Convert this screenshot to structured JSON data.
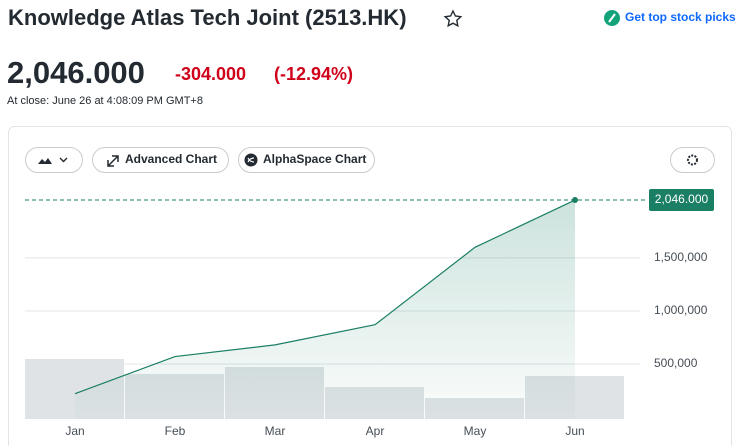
{
  "header": {
    "title": "Knowledge Atlas Tech Joint (2513.HK)",
    "cta": "Get top stock picks"
  },
  "quote": {
    "price": "2,046.000",
    "change": "-304.000",
    "change_pct": "(-12.94%)",
    "close_time": "At close: June 26 at 4:08:09 PM GMT+8"
  },
  "toolbar": {
    "advanced": "Advanced Chart",
    "alphaspace": "AlphaSpace Chart"
  },
  "chart_data": {
    "type": "line",
    "categories": [
      "Jan",
      "Feb",
      "Mar",
      "Apr",
      "May",
      "Jun"
    ],
    "series": [
      {
        "color": "#1a7f64",
        "values": [
          220000,
          570000,
          680000,
          870000,
          1600000,
          2046000
        ]
      }
    ],
    "volume": {
      "color": "#dfe3e6",
      "values": [
        60,
        45,
        52,
        32,
        21,
        43
      ],
      "ylim": [
        0,
        150
      ]
    },
    "ylim": [
      0,
      2150000
    ],
    "yticks": [
      {
        "value": 500000,
        "label": "500,000"
      },
      {
        "value": 1000000,
        "label": "1,000,000"
      },
      {
        "value": 1500000,
        "label": "1,500,000"
      }
    ],
    "grid": true
  }
}
